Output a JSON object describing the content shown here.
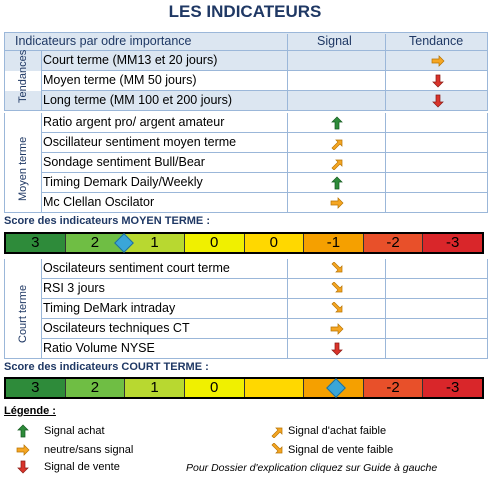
{
  "title": "LES INDICATEURS",
  "header": {
    "col1": "Indicateurs par odre importance",
    "col2": "Signal",
    "col3": "Tendance"
  },
  "sections": {
    "tendances": {
      "label": "Tendances",
      "rows": [
        {
          "label": "Court terme (MM13 et 20 jours)",
          "signal": "",
          "tendance": "neutral"
        },
        {
          "label": "Moyen terme (MM 50 jours)",
          "signal": "",
          "tendance": "sell"
        },
        {
          "label": "Long terme (MM 100 et 200 jours)",
          "signal": "",
          "tendance": "sell"
        }
      ]
    },
    "moyen": {
      "label": "Moyen terme",
      "rows": [
        {
          "label": "Ratio argent pro/ argent amateur",
          "signal": "buy"
        },
        {
          "label": "Oscillateur sentiment moyen terme",
          "signal": "weak-buy"
        },
        {
          "label": "Sondage sentiment Bull/Bear",
          "signal": "weak-buy"
        },
        {
          "label": "Timing Demark Daily/Weekly",
          "signal": "buy"
        },
        {
          "label": "Mc Clellan Oscilator",
          "signal": "neutral"
        }
      ]
    },
    "court": {
      "label": "Court terme",
      "rows": [
        {
          "label": "Oscilateurs sentiment court terme",
          "signal": "weak-sell"
        },
        {
          "label": "RSI 3 jours",
          "signal": "weak-sell"
        },
        {
          "label": "Timing DeMark intraday",
          "signal": "weak-sell"
        },
        {
          "label": "Oscilateurs techniques CT",
          "signal": "neutral"
        },
        {
          "label": "Ratio Volume NYSE",
          "signal": "sell"
        }
      ]
    }
  },
  "score_moyen": {
    "label": "Score des indicateurs MOYEN TERME :",
    "cells": [
      "3",
      "2",
      "1",
      "0",
      "0",
      "-1",
      "-2",
      "-3"
    ],
    "marker": "1"
  },
  "score_court": {
    "label": "Score des indicateurs COURT TERME :",
    "cells": [
      "3",
      "2",
      "1",
      "0",
      "",
      "",
      "-2",
      "-3"
    ],
    "marker": "-1"
  },
  "colors": {
    "header_blue": "#1f3864",
    "row_alt": "#dce6f1",
    "buy": "#2e8b3a",
    "weak": "#f5a623",
    "sell": "#d9342b"
  },
  "legend": {
    "title": "Légende :",
    "buy": "Signal achat",
    "neutral": "neutre/sans signal",
    "sell": "Signal de vente",
    "weak_buy": "Signal d'achat faible",
    "weak_sell": "Signal de vente faible",
    "note": "Pour Dossier d'explication cliquez sur Guide à gauche"
  }
}
